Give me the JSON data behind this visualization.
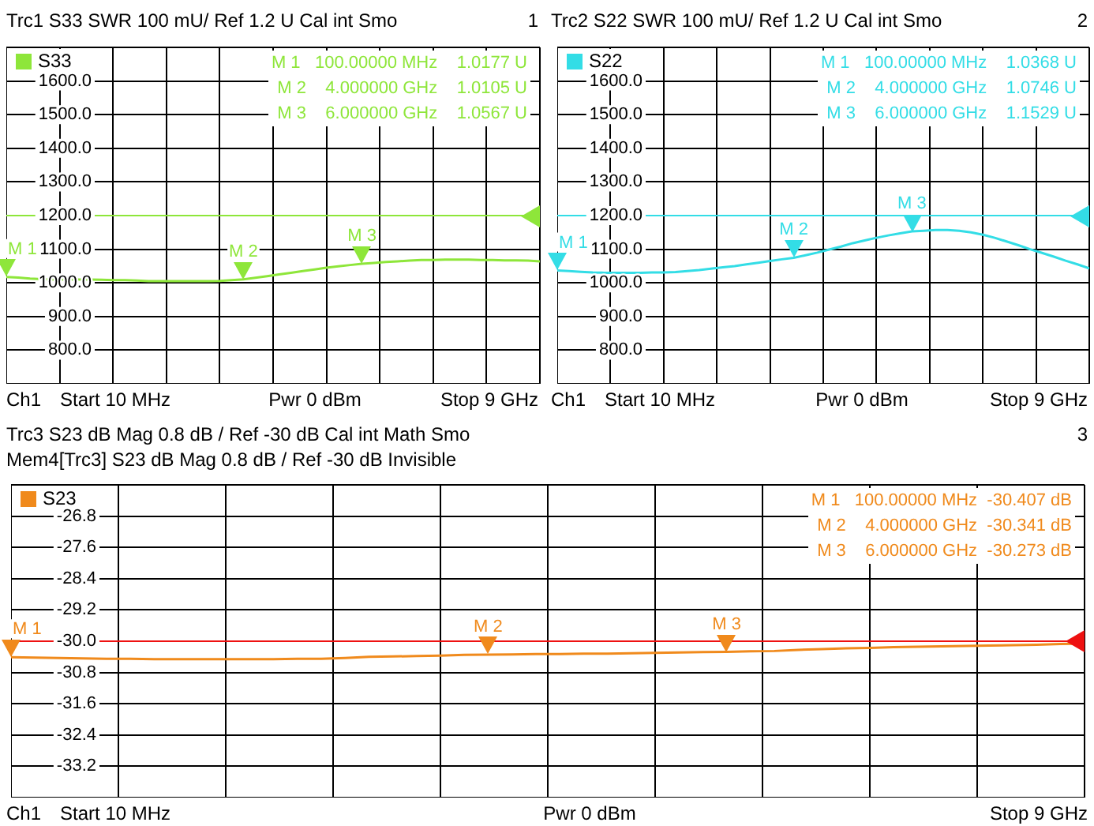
{
  "chart_data": [
    {
      "type": "line",
      "title": "Trc1 S33 SWR 100 mU/ Ref 1.2 U Cal int Smo",
      "annotations": [
        "1",
        "Ch1",
        "Start 10 MHz",
        "Pwr 0 dBm",
        "Stop 9 GHz",
        "M 1   100.00000 MHz    1.0177 U",
        "M 2    4.000000 GHz    1.0105 U",
        "M 3    6.000000 GHz    1.0567 U",
        {
          "text": "M 1",
          "y": 1017.7
        },
        {
          "text": "M 2",
          "y": 1010.5
        },
        {
          "text": "M 3",
          "y": 1056.7
        }
      ],
      "categories": [
        null,
        null,
        null,
        null,
        null,
        null,
        null,
        null,
        null,
        null,
        null,
        null,
        null,
        null,
        null,
        null,
        null,
        null,
        null,
        null,
        null,
        null,
        null,
        null,
        null,
        null,
        null,
        null,
        null,
        null,
        null,
        null,
        null,
        null,
        null,
        null,
        null,
        null,
        null,
        null,
        null,
        null,
        null,
        null,
        null,
        null
      ],
      "series": [
        {
          "name": "S33",
          "color": "#8ee63a",
          "values": [
            1017.7,
            1016,
            1013,
            1011,
            1010,
            1010,
            1010,
            1010,
            1009,
            1008,
            1008,
            1007,
            1005,
            1005,
            1005,
            1005,
            1005,
            1005,
            1006,
            1008,
            1010.5,
            1015,
            1020,
            1025,
            1030,
            1035,
            1040,
            1045,
            1049,
            1053,
            1056.7,
            1059,
            1062,
            1064,
            1066,
            1068,
            1068,
            1069,
            1069,
            1069,
            1068,
            1068,
            1067,
            1067,
            1066,
            1064
          ]
        }
      ],
      "ylim": [
        700,
        1700
      ],
      "yticks": [
        {
          "value": 800,
          "label": "800.0"
        },
        {
          "value": 900,
          "label": "900.0"
        },
        {
          "value": 1000,
          "label": "1000.0"
        },
        {
          "value": 1100,
          "label": "1100.0"
        },
        {
          "value": 1200,
          "label": "1200.0"
        },
        {
          "value": 1300,
          "label": "1300.0"
        },
        {
          "value": 1400,
          "label": "1400.0"
        },
        {
          "value": 1500,
          "label": "1500.0"
        },
        {
          "value": 1600,
          "label": "1600.0"
        }
      ],
      "ref_lines": [
        {
          "axis": "y",
          "value": 1200,
          "color": "#8ee63a"
        }
      ],
      "tick_labels": "y",
      "grid": true,
      "legend": "top left"
    },
    {
      "type": "line",
      "title": "Trc2 S22 SWR 100 mU/ Ref 1.2 U Cal int Smo",
      "annotations": [
        "2",
        "Ch1",
        "Start 10 MHz",
        "Pwr 0 dBm",
        "Stop 9 GHz",
        "M 1   100.00000 MHz    1.0368 U",
        "M 2    4.000000 GHz    1.0746 U",
        "M 3    6.000000 GHz    1.1529 U",
        {
          "text": "M 1",
          "y": 1036.8
        },
        {
          "text": "M 2",
          "y": 1074.6
        },
        {
          "text": "M 3",
          "y": 1152.9
        }
      ],
      "categories": [
        null,
        null,
        null,
        null,
        null,
        null,
        null,
        null,
        null,
        null,
        null,
        null,
        null,
        null,
        null,
        null,
        null,
        null,
        null,
        null,
        null,
        null,
        null,
        null,
        null,
        null,
        null,
        null,
        null,
        null,
        null,
        null,
        null,
        null,
        null,
        null,
        null,
        null,
        null,
        null,
        null,
        null,
        null,
        null,
        null,
        null
      ],
      "series": [
        {
          "name": "S22",
          "color": "#33dde6",
          "values": [
            1036.8,
            1035,
            1033,
            1031,
            1030,
            1030,
            1030,
            1030,
            1031,
            1031,
            1032,
            1035,
            1038,
            1042,
            1046,
            1050,
            1055,
            1060,
            1065,
            1070,
            1074.6,
            1082,
            1090,
            1099,
            1108,
            1118,
            1126,
            1134,
            1141,
            1147,
            1152.9,
            1155,
            1157,
            1157,
            1155,
            1150,
            1143,
            1134,
            1123,
            1112,
            1100,
            1089,
            1078,
            1066,
            1055,
            1043
          ]
        }
      ],
      "ylim": [
        700,
        1700
      ],
      "yticks": [
        {
          "value": 800,
          "label": "800.0"
        },
        {
          "value": 900,
          "label": "900.0"
        },
        {
          "value": 1000,
          "label": "1000.0"
        },
        {
          "value": 1100,
          "label": "1100.0"
        },
        {
          "value": 1200,
          "label": "1200.0"
        },
        {
          "value": 1300,
          "label": "1300.0"
        },
        {
          "value": 1400,
          "label": "1400.0"
        },
        {
          "value": 1500,
          "label": "1500.0"
        },
        {
          "value": 1600,
          "label": "1600.0"
        }
      ],
      "ref_lines": [
        {
          "axis": "y",
          "value": 1200,
          "color": "#33dde6"
        }
      ],
      "tick_labels": "y",
      "grid": true,
      "legend": "top left"
    },
    {
      "type": "line",
      "title": "Trc3 S23 dB Mag 0.8 dB / Ref -30 dB Cal int Math Smo",
      "subtitle": "Mem4[Trc3] S23 dB Mag 0.8 dB / Ref -30 dB Invisible",
      "annotations": [
        "3",
        "Ch1",
        "Start 10 MHz",
        "Pwr 0 dBm",
        "Stop 9 GHz",
        "M 1   100.00000 MHz  -30.407 dB",
        "M 2    4.000000 GHz  -30.341 dB",
        "M 3    6.000000 GHz  -30.273 dB",
        {
          "text": "M 1",
          "y": -30.407
        },
        {
          "text": "M 2",
          "y": -30.341
        },
        {
          "text": "M 3",
          "y": -30.273
        }
      ],
      "categories": [
        null,
        null,
        null,
        null,
        null,
        null,
        null,
        null,
        null,
        null,
        null,
        null,
        null,
        null,
        null,
        null,
        null,
        null,
        null,
        null,
        null,
        null,
        null,
        null,
        null,
        null,
        null,
        null,
        null,
        null,
        null,
        null,
        null,
        null,
        null,
        null,
        null,
        null,
        null,
        null,
        null,
        null,
        null,
        null,
        null,
        null
      ],
      "series": [
        {
          "name": "S23",
          "color": "#f08a1c",
          "values": [
            -30.407,
            -30.42,
            -30.43,
            -30.44,
            -30.45,
            -30.45,
            -30.46,
            -30.46,
            -30.46,
            -30.46,
            -30.46,
            -30.46,
            -30.45,
            -30.45,
            -30.43,
            -30.4,
            -30.39,
            -30.38,
            -30.37,
            -30.35,
            -30.341,
            -30.34,
            -30.33,
            -30.33,
            -30.32,
            -30.32,
            -30.31,
            -30.3,
            -30.29,
            -30.28,
            -30.273,
            -30.26,
            -30.25,
            -30.22,
            -30.2,
            -30.18,
            -30.17,
            -30.15,
            -30.14,
            -30.13,
            -30.12,
            -30.11,
            -30.1,
            -30.09,
            -30.07,
            -30.06
          ]
        }
      ],
      "ylim": [
        -34,
        -26
      ],
      "yticks": [
        -33.2,
        -32.4,
        -31.6,
        -30.8,
        {
          "value": -30,
          "label": "-30.0"
        },
        -29.2,
        -28.4,
        -27.6,
        -26.8
      ],
      "ref_lines": [
        {
          "axis": "y",
          "value": -30,
          "color": "#ee1111"
        }
      ],
      "tick_labels": "y",
      "grid": true,
      "legend": "top left"
    }
  ]
}
